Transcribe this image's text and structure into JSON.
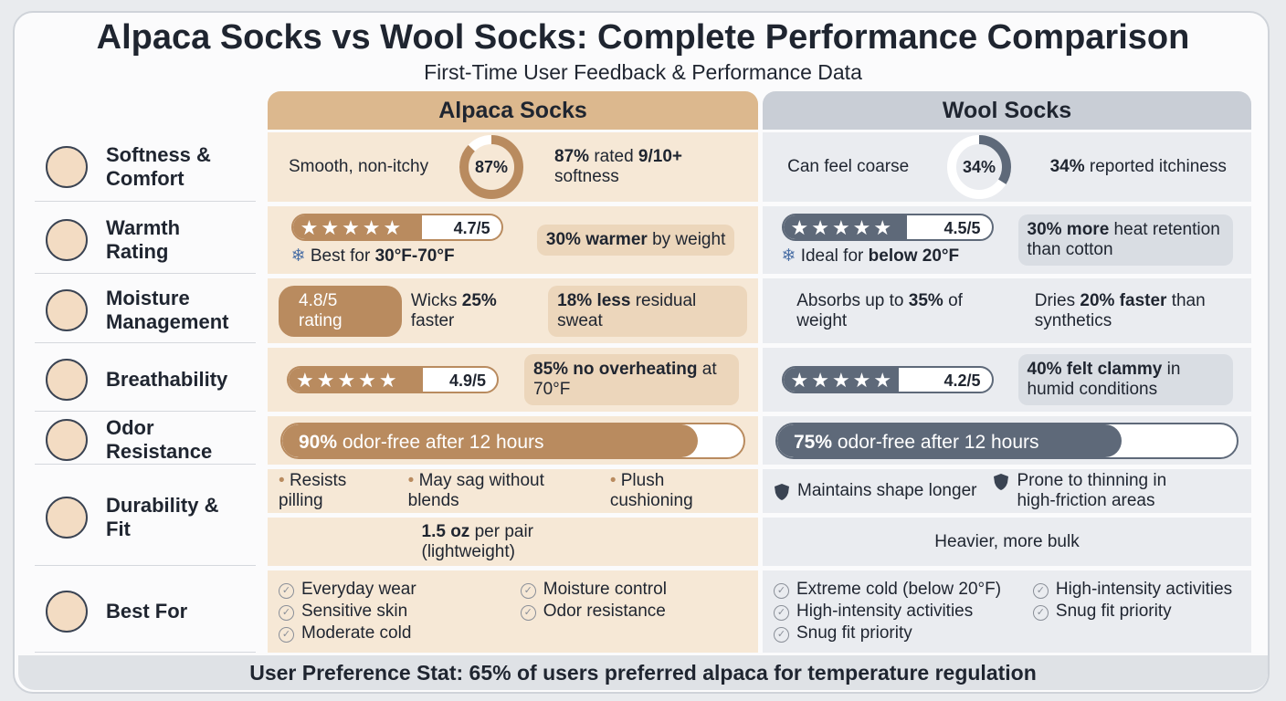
{
  "header": {
    "title": "Alpaca Socks vs Wool Socks: Complete Performance Comparison",
    "subtitle": "First-Time User Feedback & Performance Data"
  },
  "columns": {
    "alpaca": "Alpaca Socks",
    "wool": "Wool Socks"
  },
  "rows": [
    {
      "label": "Softness & Comfort",
      "alpaca": [
        [
          {
            "kind": "text",
            "parts": [
              {
                "t": "Smooth, non-itchy"
              }
            ]
          },
          {
            "kind": "ring",
            "value": 87,
            "label": "87%"
          },
          {
            "kind": "text",
            "parts": [
              {
                "t": "87%",
                "b": true
              },
              {
                "t": " rated "
              },
              {
                "t": "9/10+",
                "b": true
              },
              {
                "t": " softness"
              }
            ]
          }
        ]
      ],
      "wool": [
        [
          {
            "kind": "text",
            "parts": [
              {
                "t": "Can feel coarse"
              }
            ]
          },
          {
            "kind": "ring",
            "value": 34,
            "label": "34%"
          },
          {
            "kind": "text",
            "parts": [
              {
                "t": "34%",
                "b": true
              },
              {
                "t": " reported itchiness"
              }
            ]
          }
        ]
      ]
    },
    {
      "label": "Warmth Rating",
      "alpaca": [
        [
          {
            "kind": "stars",
            "value": 4.7,
            "label": "4.7/5",
            "note": [
              {
                "t": "Best for "
              },
              {
                "t": "30°F-70°F",
                "b": true
              }
            ]
          },
          {
            "kind": "callout",
            "parts": [
              {
                "t": "30% warmer",
                "b": true
              },
              {
                "t": " by weight"
              }
            ]
          }
        ]
      ],
      "wool": [
        [
          {
            "kind": "stars",
            "value": 4.5,
            "label": "4.5/5",
            "note": [
              {
                "t": "Ideal for "
              },
              {
                "t": "below 20°F",
                "b": true
              }
            ]
          },
          {
            "kind": "callout",
            "parts": [
              {
                "t": "30% more",
                "b": true
              },
              {
                "t": " heat retention than cotton"
              }
            ]
          }
        ]
      ]
    },
    {
      "label": "Moisture Management",
      "alpaca": [
        [
          {
            "kind": "pill",
            "label": "4.8/5 rating"
          },
          {
            "kind": "text",
            "parts": [
              {
                "t": "Wicks "
              },
              {
                "t": "25%",
                "b": true
              },
              {
                "t": " faster"
              }
            ]
          },
          {
            "kind": "callout",
            "parts": [
              {
                "t": "18% less",
                "b": true
              },
              {
                "t": " residual sweat"
              }
            ]
          }
        ]
      ],
      "wool": [
        [
          {
            "kind": "text",
            "parts": [
              {
                "t": "Absorbs up to "
              },
              {
                "t": "35%",
                "b": true
              },
              {
                "t": " of weight"
              }
            ]
          },
          {
            "kind": "text",
            "parts": [
              {
                "t": "Dries "
              },
              {
                "t": "20% faster",
                "b": true
              },
              {
                "t": " than synthetics"
              }
            ]
          }
        ]
      ]
    },
    {
      "label": "Breathability",
      "alpaca": [
        [
          {
            "kind": "stars",
            "value": 4.9,
            "label": "4.9/5"
          },
          {
            "kind": "callout",
            "parts": [
              {
                "t": "85% no overheating",
                "b": true
              },
              {
                "t": " at 70°F"
              }
            ]
          }
        ]
      ],
      "wool": [
        [
          {
            "kind": "stars",
            "value": 4.2,
            "label": "4.2/5"
          },
          {
            "kind": "callout",
            "parts": [
              {
                "t": "40% felt clammy",
                "b": true
              },
              {
                "t": " in humid conditions"
              }
            ]
          }
        ]
      ]
    },
    {
      "label": "Odor Resistance",
      "alpaca": [
        [
          {
            "kind": "bar",
            "value": 90,
            "parts": [
              {
                "t": "90%",
                "b": true
              },
              {
                "t": " odor-free after 12 hours"
              }
            ]
          }
        ]
      ],
      "wool": [
        [
          {
            "kind": "bar",
            "value": 75,
            "parts": [
              {
                "t": "75%",
                "b": true
              },
              {
                "t": " odor-free after 12 hours"
              }
            ]
          }
        ]
      ]
    },
    {
      "label": "Durability & Fit",
      "alpaca": [
        [
          {
            "kind": "bullets",
            "items": [
              "Resists pilling",
              "May sag without blends",
              "Plush cushioning"
            ]
          }
        ],
        [
          {
            "kind": "text",
            "parts": [
              {
                "t": "1.5 oz",
                "b": true
              },
              {
                "t": " per pair (lightweight)"
              }
            ]
          }
        ]
      ],
      "wool": [
        [
          {
            "kind": "shields",
            "items": [
              "Maintains shape longer",
              "Prone to thinning in high-friction areas"
            ]
          }
        ],
        [
          {
            "kind": "text",
            "parts": [
              {
                "t": "Heavier, more bulk"
              }
            ]
          }
        ]
      ]
    },
    {
      "label": "Best For",
      "alpaca": [
        [
          {
            "kind": "checks",
            "items": [
              "Everyday wear",
              "Moisture control",
              "Sensitive skin",
              "Odor resistance",
              "Moderate cold"
            ]
          }
        ]
      ],
      "wool": [
        [
          {
            "kind": "checks",
            "items": [
              "Extreme cold (below 20°F)",
              "High-intensity activities",
              "High-intensity activities",
              "Snug fit priority",
              "Snug fit priority"
            ]
          }
        ]
      ]
    }
  ],
  "footer": "User Preference Stat: 65% of users preferred alpaca for temperature regulation"
}
